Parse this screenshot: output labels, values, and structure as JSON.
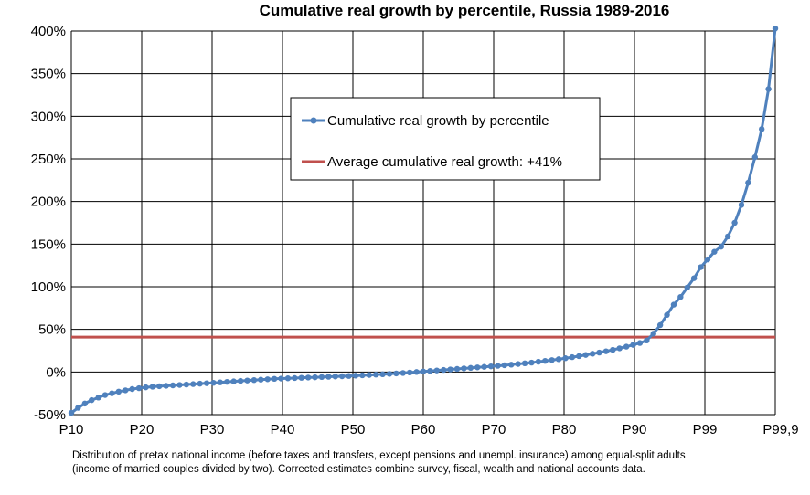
{
  "chart_data": {
    "type": "line",
    "title": "Cumulative real growth by percentile, Russia 1989-2016",
    "xlabel": "",
    "ylabel": "",
    "x_tick_labels": [
      "P10",
      "P20",
      "P30",
      "P40",
      "P50",
      "P60",
      "P70",
      "P80",
      "P90",
      "P99",
      "P99,9"
    ],
    "y_tick_labels": [
      "-50%",
      "0%",
      "50%",
      "100%",
      "150%",
      "200%",
      "250%",
      "300%",
      "350%",
      "400%"
    ],
    "ylim": [
      -50,
      400
    ],
    "grid": true,
    "legend_placement": "top-center",
    "series": [
      {
        "name": "Cumulative real growth by percentile",
        "color": "#4f81bd",
        "marker": "circle",
        "values": [
          -48,
          -42,
          -37,
          -33,
          -30,
          -27,
          -25,
          -23,
          -21.5,
          -20,
          -19,
          -18,
          -17.3,
          -16.7,
          -16.2,
          -15.7,
          -15.2,
          -14.7,
          -14.2,
          -13.7,
          -13.2,
          -12.7,
          -12.2,
          -11.6,
          -11,
          -10.5,
          -10,
          -9.5,
          -9,
          -8.5,
          -8,
          -7.7,
          -7.4,
          -7.1,
          -6.8,
          -6.5,
          -6.2,
          -5.9,
          -5.6,
          -5.3,
          -5,
          -4.7,
          -4.3,
          -3.9,
          -3.5,
          -3.1,
          -2.7,
          -2.2,
          -1.7,
          -1.2,
          -0.6,
          0,
          0.6,
          1.2,
          1.8,
          2.4,
          3,
          3.6,
          4.2,
          4.8,
          5.4,
          6,
          6.6,
          7.2,
          7.9,
          8.6,
          9.4,
          10.2,
          11,
          12,
          13,
          14,
          15,
          16.2,
          17.4,
          18.6,
          20,
          21.4,
          22.8,
          24.3,
          26,
          27.8,
          29.7,
          31.8,
          34,
          37,
          45,
          55,
          67,
          79,
          88,
          99,
          110,
          123,
          132,
          141,
          147,
          159,
          175,
          196,
          222,
          252,
          285,
          332,
          403
        ]
      }
    ],
    "reference_lines": [
      {
        "name": "Average cumulative real growth: +41%",
        "value": 41,
        "color": "#c0504d"
      }
    ]
  },
  "note": {
    "line1": "Distribution of pretax national income (before taxes and transfers, except pensions and unempl. insurance) among equal-split adults",
    "line2": "(income of married couples divided by two). Corrected estimates combine survey, fiscal, wealth and national accounts data."
  }
}
